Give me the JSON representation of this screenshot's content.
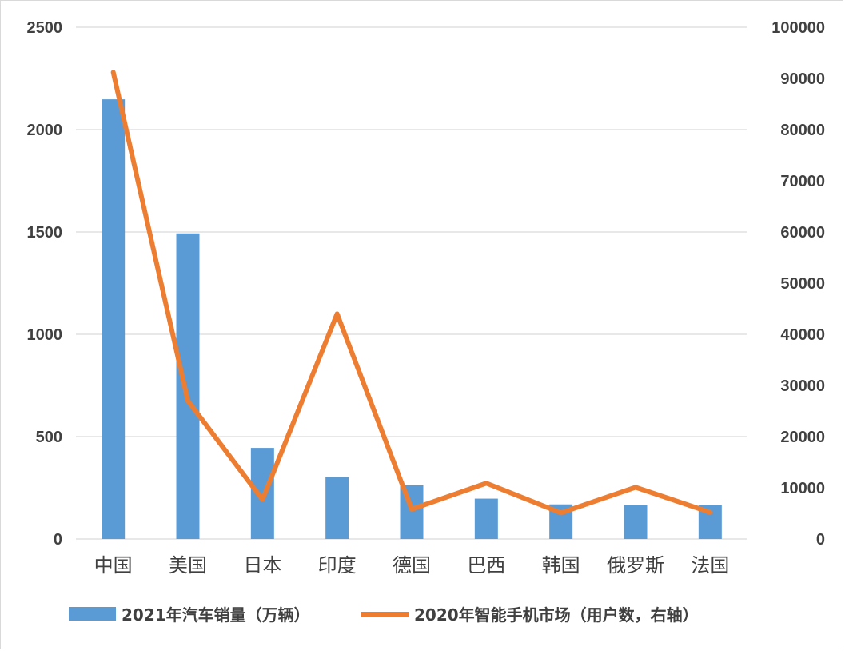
{
  "chart_data": {
    "type": "bar+line",
    "categories": [
      "中国",
      "美国",
      "日本",
      "印度",
      "德国",
      "巴西",
      "韩国",
      "俄罗斯",
      "法国"
    ],
    "series": [
      {
        "name": "2021年汽车销量（万辆）",
        "type": "bar",
        "axis": "left",
        "color": "#5b9bd5",
        "values": [
          2148,
          1493,
          445,
          303,
          262,
          197,
          169,
          166,
          165
        ]
      },
      {
        "name": "2020年智能手机市场（用户数，右轴）",
        "type": "line",
        "axis": "right",
        "color": "#ed7d31",
        "values": [
          91200,
          27000,
          7700,
          44000,
          5800,
          10900,
          5100,
          10100,
          5200
        ]
      }
    ],
    "y_left": {
      "ticks": [
        "0",
        "500",
        "1000",
        "1500",
        "2000",
        "2500"
      ],
      "range": [
        0,
        2500
      ]
    },
    "y_right": {
      "ticks": [
        "0",
        "10000",
        "20000",
        "30000",
        "40000",
        "50000",
        "60000",
        "70000",
        "80000",
        "90000",
        "100000"
      ],
      "range": [
        0,
        100000
      ]
    },
    "grid": true,
    "legend": "bottom"
  }
}
